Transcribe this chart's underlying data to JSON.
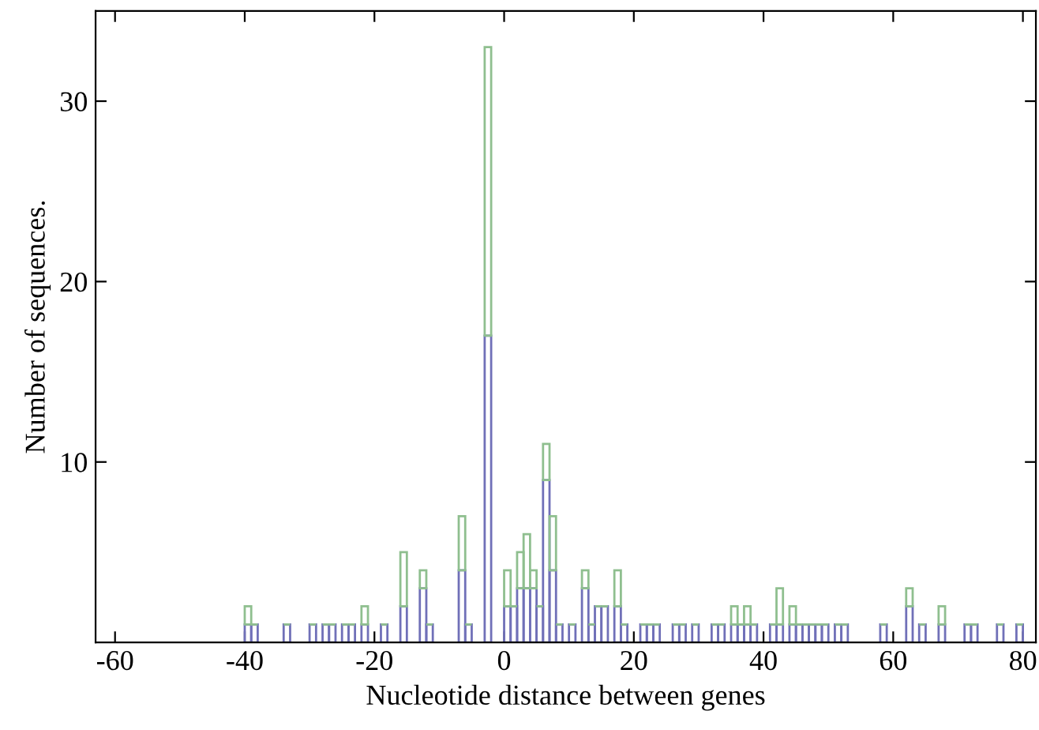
{
  "chart_data": {
    "type": "bar",
    "xlabel": "Nucleotide distance between genes",
    "ylabel": "Number of sequences.",
    "stacked": true,
    "x": [
      -39.5,
      -38.5,
      -33.5,
      -29.5,
      -27.5,
      -26.5,
      -24.5,
      -23.5,
      -21.5,
      -18.5,
      -15.5,
      -12.5,
      -11.5,
      -6.5,
      -5.5,
      -2.5,
      0.5,
      1.5,
      2.5,
      3.5,
      4.5,
      5.5,
      6.5,
      7.5,
      8.5,
      10.5,
      12.5,
      13.5,
      14.5,
      15.5,
      17.5,
      18.5,
      21.5,
      22.5,
      23.5,
      26.5,
      27.5,
      29.5,
      32.5,
      33.5,
      35.5,
      36.5,
      37.5,
      38.5,
      41.5,
      42.5,
      44.5,
      45.5,
      46.5,
      47.5,
      48.5,
      49.5,
      51.5,
      52.5,
      58.5,
      62.5,
      64.5,
      67.5,
      71.5,
      72.5,
      76.5,
      79.5
    ],
    "series": [
      {
        "color": "#7070b8",
        "values": [
          1,
          1,
          1,
          1,
          1,
          1,
          1,
          1,
          1,
          1,
          2,
          3,
          1,
          4,
          1,
          17,
          2,
          2,
          3,
          3,
          3,
          2,
          9,
          4,
          1,
          1,
          3,
          1,
          2,
          2,
          2,
          1,
          1,
          1,
          1,
          1,
          1,
          1,
          1,
          1,
          1,
          1,
          1,
          1,
          1,
          1,
          1,
          1,
          1,
          1,
          1,
          1,
          1,
          1,
          1,
          2,
          1,
          1,
          1,
          1,
          1,
          1
        ]
      },
      {
        "color": "#8fbf8f",
        "values": [
          1,
          0,
          0,
          0,
          0,
          0,
          0,
          0,
          1,
          0,
          3,
          1,
          0,
          3,
          0,
          16,
          2,
          0,
          2,
          3,
          1,
          0,
          2,
          3,
          0,
          0,
          1,
          0,
          0,
          0,
          2,
          0,
          0,
          0,
          0,
          0,
          0,
          0,
          0,
          0,
          1,
          0,
          1,
          0,
          0,
          2,
          1,
          0,
          0,
          0,
          0,
          0,
          0,
          0,
          0,
          1,
          0,
          1,
          0,
          0,
          0,
          0
        ]
      }
    ],
    "xlim": [
      -63,
      82
    ],
    "xticks": [
      -60,
      -40,
      -20,
      0,
      20,
      40,
      60,
      80
    ],
    "ylim": [
      0,
      35
    ],
    "yticks": [
      10,
      20,
      30
    ],
    "grid": false
  }
}
